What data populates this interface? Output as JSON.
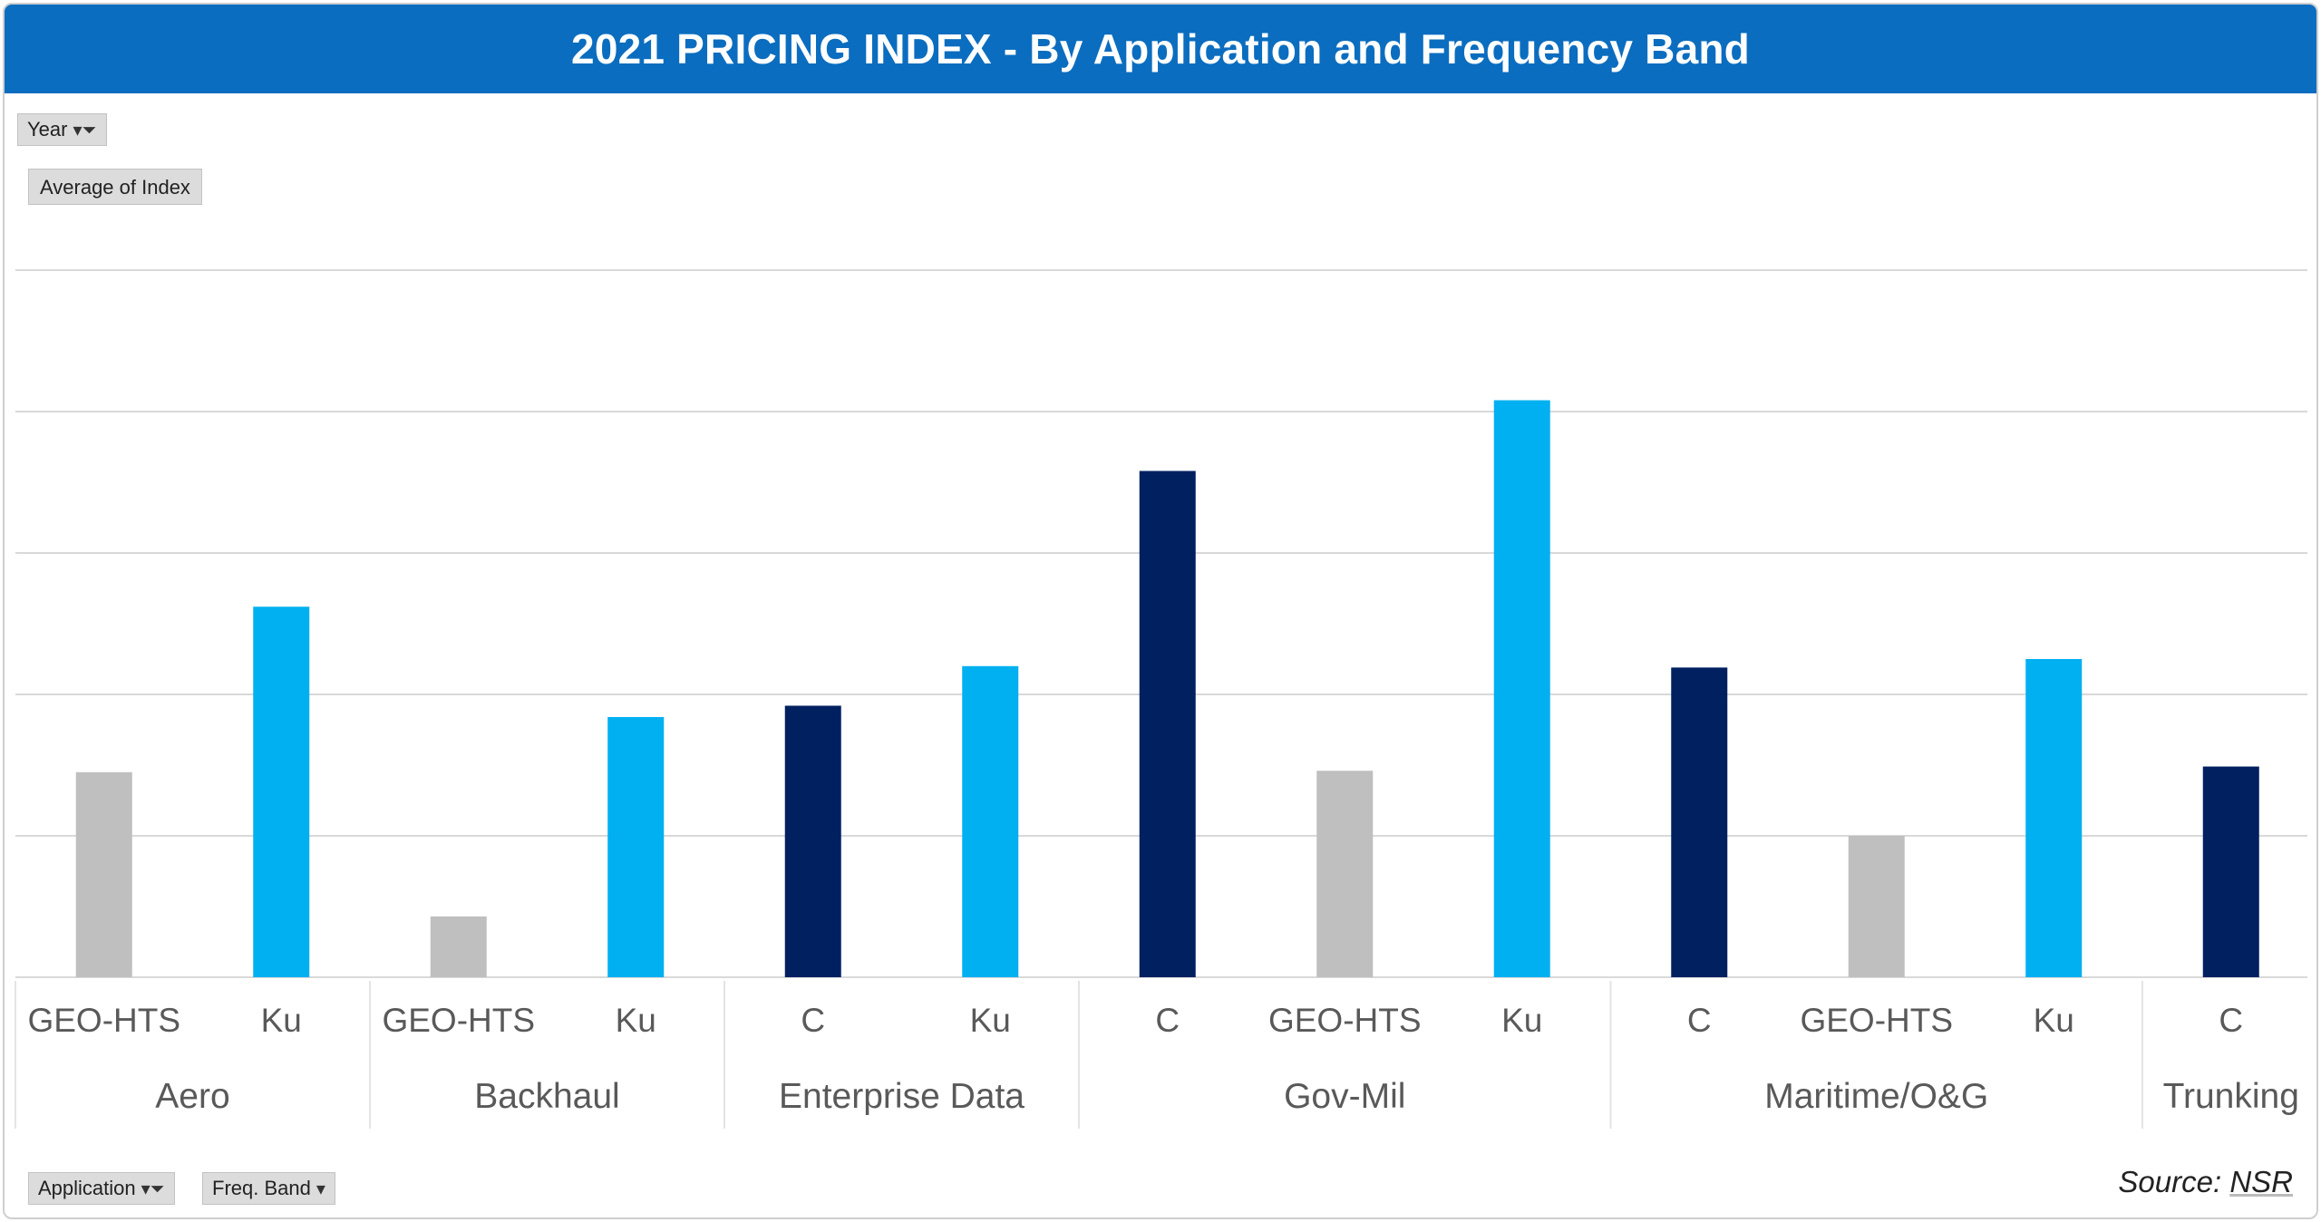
{
  "title": "2021 PRICING INDEX - By Application and Frequency Band",
  "controls": {
    "year_label": "Year",
    "average_label": "Average of Index",
    "application_label": "Application",
    "freq_band_label": "Freq. Band"
  },
  "source": {
    "prefix": "Source:",
    "name": "NSR"
  },
  "colors": {
    "header": "#0b6dbf",
    "GEO-HTS": "#bfbfbf",
    "Ku": "#00b0f0",
    "C": "#002060",
    "gridline": "#d9d9d9",
    "axis_text": "#595959"
  },
  "chart_data": {
    "type": "bar",
    "title": "2021 PRICING INDEX - By Application and Frequency Band",
    "xlabel": "",
    "ylabel": "Average of Index",
    "ylim": [
      0,
      5
    ],
    "gridlines": [
      1,
      2,
      3,
      4,
      5
    ],
    "grid": true,
    "legend": "none",
    "groups": [
      {
        "name": "Aero",
        "bars": [
          {
            "band": "GEO-HTS",
            "value": 1.45
          },
          {
            "band": "Ku",
            "value": 2.62
          }
        ]
      },
      {
        "name": "Backhaul",
        "bars": [
          {
            "band": "GEO-HTS",
            "value": 0.43
          },
          {
            "band": "Ku",
            "value": 1.84
          }
        ]
      },
      {
        "name": "Enterprise Data",
        "bars": [
          {
            "band": "C",
            "value": 1.92
          },
          {
            "band": "Ku",
            "value": 2.2
          }
        ]
      },
      {
        "name": "Gov-Mil",
        "bars": [
          {
            "band": "C",
            "value": 3.58
          },
          {
            "band": "GEO-HTS",
            "value": 1.46
          },
          {
            "band": "Ku",
            "value": 4.08
          }
        ]
      },
      {
        "name": "Maritime/O&G",
        "bars": [
          {
            "band": "C",
            "value": 2.19
          },
          {
            "band": "GEO-HTS",
            "value": 1.0
          },
          {
            "band": "Ku",
            "value": 2.25
          }
        ]
      },
      {
        "name": "Trunking",
        "bars": [
          {
            "band": "C",
            "value": 1.49
          }
        ]
      }
    ]
  }
}
